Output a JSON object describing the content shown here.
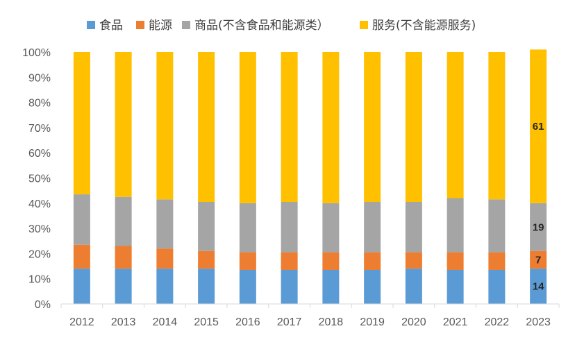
{
  "chart_data": {
    "type": "bar",
    "stacked": true,
    "normalized": true,
    "categories": [
      "2012",
      "2013",
      "2014",
      "2015",
      "2016",
      "2017",
      "2018",
      "2019",
      "2020",
      "2021",
      "2022",
      "2023"
    ],
    "series": [
      {
        "name": "食品",
        "color": "#5B9BD5",
        "values": [
          14,
          14,
          14,
          14,
          13.5,
          13.5,
          13.5,
          13.5,
          14,
          13.5,
          13.5,
          14
        ]
      },
      {
        "name": "能源",
        "color": "#ED7D31",
        "values": [
          9.5,
          9,
          8,
          7,
          7,
          7,
          7,
          7,
          6.5,
          7,
          7,
          7
        ]
      },
      {
        "name": "商品(不含食品和能源类）",
        "color": "#A5A5A5",
        "values": [
          20,
          19.5,
          19.5,
          19.5,
          19.5,
          20,
          19.5,
          20,
          20,
          21.5,
          21,
          19
        ]
      },
      {
        "name": "服务(不含能源服务)",
        "color": "#FFC000",
        "values": [
          56.5,
          57.5,
          58.5,
          59.5,
          60,
          59.5,
          60,
          59.5,
          59.5,
          58,
          58.5,
          61
        ]
      }
    ],
    "ylim": [
      0,
      100
    ],
    "yticks": [
      "0%",
      "10%",
      "20%",
      "30%",
      "40%",
      "50%",
      "60%",
      "70%",
      "80%",
      "90%",
      "100%"
    ],
    "data_labels": {
      "category": "2023",
      "labels": [
        "14",
        "7",
        "19",
        "61"
      ]
    },
    "legend_position": "top"
  }
}
